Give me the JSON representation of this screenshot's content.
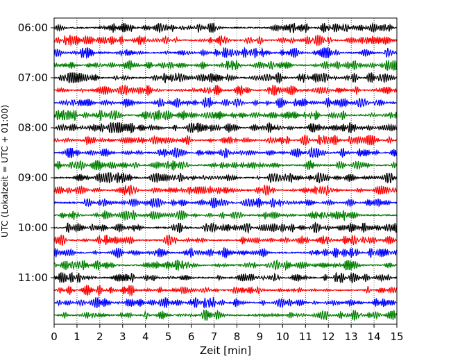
{
  "chart_data": {
    "type": "line",
    "title": "",
    "xlabel": "Zeit  [min]",
    "ylabel": "UTC (Lokalzeit = UTC + 01:00)",
    "xlim": [
      0,
      15
    ],
    "x_ticks": [
      "0",
      "1",
      "2",
      "3",
      "4",
      "5",
      "6",
      "7",
      "8",
      "9",
      "10",
      "11",
      "12",
      "13",
      "14",
      "15"
    ],
    "y_ticks": [
      "06:00",
      "07:00",
      "08:00",
      "09:00",
      "10:00",
      "11:00"
    ],
    "grid": "vertical dotted lines at each minute",
    "trace_interval_minutes": 15,
    "trace_start_times": [
      "06:00",
      "06:15",
      "06:30",
      "06:45",
      "07:00",
      "07:15",
      "07:30",
      "07:45",
      "08:00",
      "08:15",
      "08:30",
      "08:45",
      "09:00",
      "09:15",
      "09:30",
      "09:45",
      "10:00",
      "10:15",
      "10:30",
      "10:45",
      "11:00",
      "11:15",
      "11:30",
      "11:45"
    ],
    "trace_colors": [
      "#000000",
      "#ff0000",
      "#0000ff",
      "#008000"
    ]
  }
}
